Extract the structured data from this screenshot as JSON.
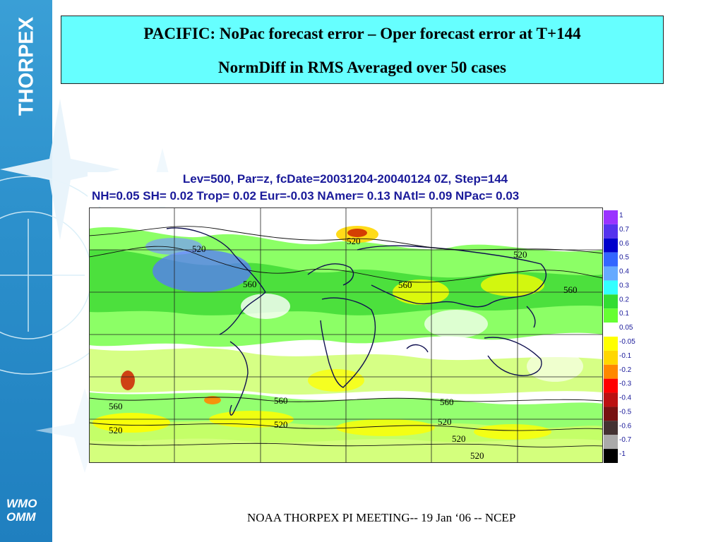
{
  "slide": {
    "brand": "THORPEX",
    "logo_line1": "WMO",
    "logo_line2": "OMM",
    "title_line1": "PACIFIC: NoPac forecast error – Oper forecast error at T+144",
    "title_line2": "NormDiff in RMS Averaged over 50 cases",
    "footer": "NOAA THORPEX PI MEETING-- 19 Jan ‘06 -- NCEP"
  },
  "map": {
    "header_line1": "Lev=500, Par=z, fcDate=20031204-20040124 0Z, Step=144",
    "header_line2": "NH=0.05 SH= 0.02 Trop= 0.02 Eur=-0.03 NAmer= 0.13 NAtl= 0.09 NPac= 0.03",
    "contour_labels": [
      "520",
      "520",
      "560",
      "560",
      "560",
      "520",
      "560",
      "520",
      "560",
      "560",
      "520",
      "520",
      "520",
      "520"
    ],
    "colorbar": {
      "labels": [
        "1",
        "0.7",
        "0.6",
        "0.5",
        "0.4",
        "0.3",
        "0.2",
        "0.1",
        "0.05",
        "-0.05",
        "-0.1",
        "-0.2",
        "-0.3",
        "-0.4",
        "-0.5",
        "-0.6",
        "-0.7",
        "-1"
      ],
      "colors": [
        "#9a33ff",
        "#5533ee",
        "#0000cc",
        "#3366ff",
        "#66aaff",
        "#33ffff",
        "#33dd33",
        "#66ff33",
        "#ffffff",
        "#ffff00",
        "#ffd700",
        "#ff8800",
        "#ff0000",
        "#bb1111",
        "#771111",
        "#443333",
        "#aaaaaa",
        "#000000"
      ]
    },
    "colors": {
      "background_land_sea": "#ffffff",
      "green": "#66ff33",
      "light_green": "#ccff66",
      "yellow": "#ffff00",
      "dark_green": "#22cc22",
      "blue": "#5577ff",
      "red": "#cc2200"
    }
  }
}
